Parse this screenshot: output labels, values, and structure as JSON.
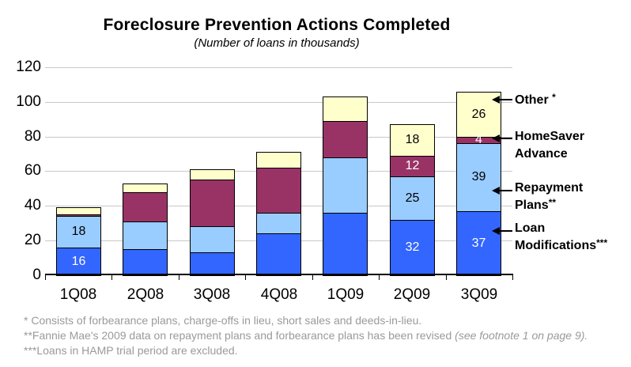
{
  "title": "Foreclosure Prevention Actions Completed",
  "subtitle": "(Number of loans in thousands)",
  "chart_data": {
    "type": "bar",
    "stacked": true,
    "x_categories": [
      "1Q08",
      "2Q08",
      "3Q08",
      "4Q08",
      "1Q09",
      "2Q09",
      "3Q09"
    ],
    "ylim": [
      0,
      120
    ],
    "yticks": [
      0,
      20,
      40,
      60,
      80,
      100,
      120
    ],
    "grid": true,
    "legend_position": "right-annotations",
    "series": [
      {
        "name": "Loan Modifications***",
        "color": "#3366FF",
        "label_color": "#FFFFFF",
        "values": [
          16,
          15,
          13,
          24,
          36,
          32,
          37
        ],
        "shown_labels": [
          "16",
          "",
          "",
          "",
          "",
          "32",
          "37"
        ]
      },
      {
        "name": "Repayment Plans**",
        "color": "#99CCFF",
        "label_color": "#000000",
        "values": [
          18,
          16,
          15,
          12,
          32,
          25,
          39
        ],
        "shown_labels": [
          "18",
          "",
          "",
          "",
          "",
          "25",
          "39"
        ]
      },
      {
        "name": "HomeSaver Advance",
        "color": "#993366",
        "label_color": "#FFFFFF",
        "values": [
          1,
          17,
          27,
          26,
          21,
          12,
          4
        ],
        "shown_labels": [
          "",
          "",
          "",
          "",
          "",
          "12",
          "4"
        ]
      },
      {
        "name": "Other *",
        "color": "#FFFFCC",
        "label_color": "#000000",
        "values": [
          4,
          5,
          6,
          9,
          14,
          18,
          26
        ],
        "shown_labels": [
          "",
          "",
          "",
          "",
          "",
          "18",
          "26"
        ]
      }
    ],
    "totals": [
      39,
      53,
      61,
      71,
      103,
      87,
      106
    ]
  },
  "legend": {
    "items": [
      {
        "line1": "Other ",
        "line1_sup": "*",
        "line2": "",
        "line2_sup": ""
      },
      {
        "line1": "HomeSaver",
        "line1_sup": "",
        "line2": "Advance",
        "line2_sup": ""
      },
      {
        "line1": "Repayment",
        "line1_sup": "",
        "line2": "Plans",
        "line2_sup": "**"
      },
      {
        "line1": "Loan",
        "line1_sup": "",
        "line2": "Modifications",
        "line2_sup": "***"
      }
    ]
  },
  "footnotes": {
    "line1": "* Consists of forbearance plans, charge-offs in lieu, short sales and deeds-in-lieu.",
    "line2_normal": "**Fannie Mae's 2009 data on repayment plans and forbearance plans has been revised ",
    "line2_italic": "(see footnote 1 on page 9).",
    "line3": "***Loans in HAMP trial period are excluded."
  },
  "colors": {
    "loan_modifications": "#3366FF",
    "repayment_plans": "#99CCFF",
    "homesaver_advance": "#993366",
    "other": "#FFFFCC",
    "gridline": "#C8C8C8",
    "axis": "#000000",
    "footnote_text": "#9A9A9A"
  }
}
